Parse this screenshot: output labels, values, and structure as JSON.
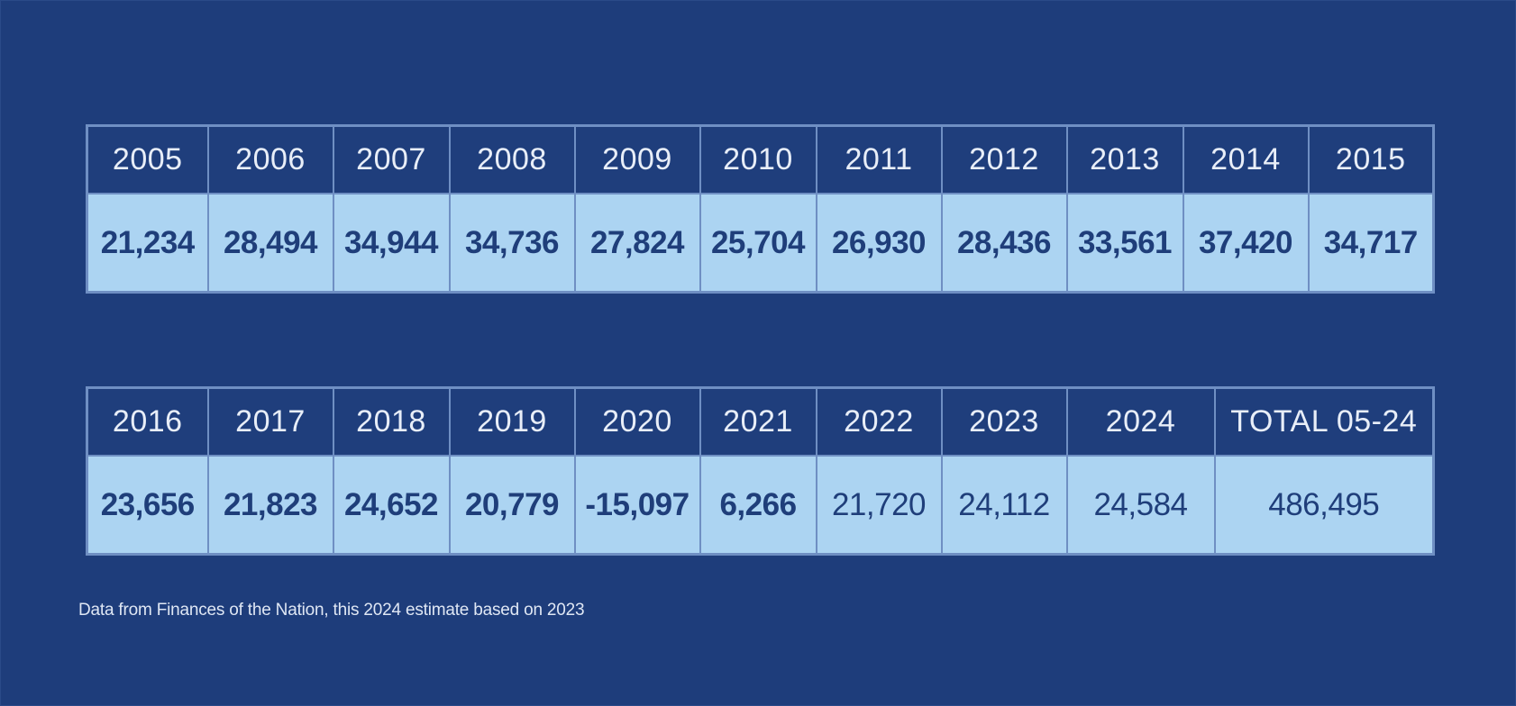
{
  "chart_data": {
    "type": "table",
    "tables": [
      {
        "years": [
          "2005",
          "2006",
          "2007",
          "2008",
          "2009",
          "2010",
          "2011",
          "2012",
          "2013",
          "2014",
          "2015"
        ],
        "values": [
          "21,234",
          "28,494",
          "34,944",
          "34,736",
          "27,824",
          "25,704",
          "26,930",
          "28,436",
          "33,561",
          "37,420",
          "34,717"
        ]
      },
      {
        "years": [
          "2016",
          "2017",
          "2018",
          "2019",
          "2020",
          "2021",
          "2022",
          "2023",
          "2024",
          "TOTAL 05-24"
        ],
        "values": [
          "23,656",
          "21,823",
          "24,652",
          "20,779",
          "-15,097",
          "6,266",
          "21,720",
          "24,112",
          "24,584",
          "486,495"
        ]
      }
    ],
    "footnote": "Data from Finances of the Nation, this 2024 estimate based on 2023"
  },
  "colors": {
    "background": "#1e3d7b",
    "header_cell": "#1f3e7c",
    "value_cell": "#acd4f2",
    "grid_line": "#6f8fc3",
    "value_text": "#1f3e7a"
  }
}
